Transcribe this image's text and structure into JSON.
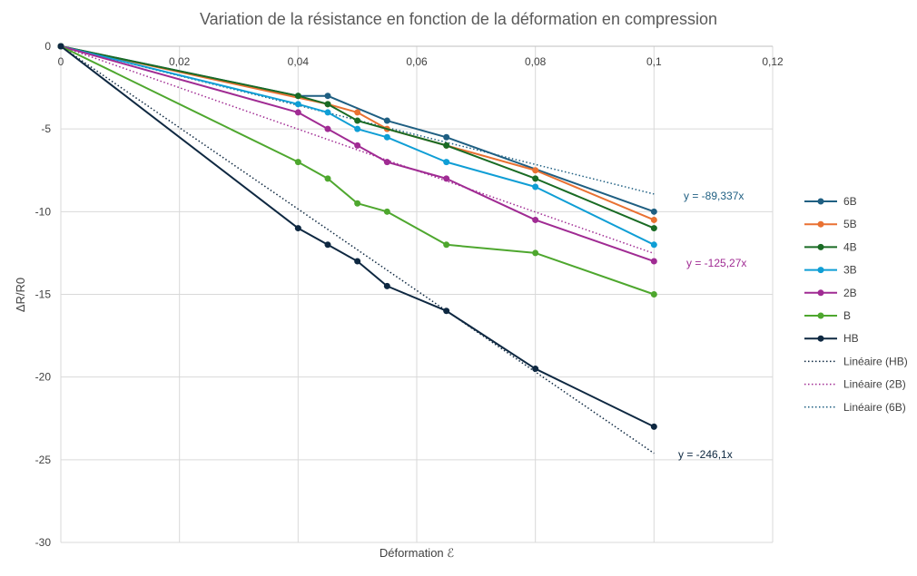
{
  "chart_data": {
    "type": "line",
    "title": "Variation de la résistance en fonction de la déformation en compression",
    "xlabel": "Déformation ℰ",
    "ylabel": "ΔR/R0",
    "xlim": [
      0,
      0.12
    ],
    "ylim": [
      -30,
      0
    ],
    "x_ticks": [
      0,
      0.02,
      0.04,
      0.06,
      0.08,
      0.1,
      0.12
    ],
    "x_tick_labels": [
      "0",
      "0,02",
      "0,04",
      "0,06",
      "0,08",
      "0,1",
      "0,12"
    ],
    "y_ticks": [
      0,
      -5,
      -10,
      -15,
      -20,
      -25,
      -30
    ],
    "y_tick_labels": [
      "0",
      "-5",
      "-10",
      "-15",
      "-20",
      "-25",
      "-30"
    ],
    "grid": true,
    "legend_position": "right",
    "series": [
      {
        "name": "6B",
        "color": "#1f5f82",
        "x": [
          0,
          0.04,
          0.045,
          0.055,
          0.065,
          0.1
        ],
        "y": [
          0,
          -3,
          -3,
          -4.5,
          -5.5,
          -10
        ]
      },
      {
        "name": "5B",
        "color": "#e97132",
        "x": [
          0,
          0.045,
          0.05,
          0.055,
          0.065,
          0.08,
          0.1
        ],
        "y": [
          0,
          -3.5,
          -4,
          -5,
          -6,
          -7.5,
          -10.5
        ]
      },
      {
        "name": "4B",
        "color": "#196b24",
        "x": [
          0,
          0.04,
          0.045,
          0.05,
          0.065,
          0.08,
          0.1
        ],
        "y": [
          0,
          -3,
          -3.5,
          -4.5,
          -6,
          -8,
          -11
        ]
      },
      {
        "name": "3B",
        "color": "#0f9ed5",
        "x": [
          0,
          0.04,
          0.045,
          0.05,
          0.055,
          0.065,
          0.08,
          0.1
        ],
        "y": [
          0,
          -3.5,
          -4,
          -5,
          -5.5,
          -7,
          -8.5,
          -12
        ]
      },
      {
        "name": "2B",
        "color": "#a02b93",
        "x": [
          0,
          0.04,
          0.045,
          0.05,
          0.055,
          0.065,
          0.08,
          0.1
        ],
        "y": [
          0,
          -4,
          -5,
          -6,
          -7,
          -8,
          -10.5,
          -13
        ]
      },
      {
        "name": "B",
        "color": "#4ea72e",
        "x": [
          0,
          0.04,
          0.045,
          0.05,
          0.055,
          0.065,
          0.08,
          0.1
        ],
        "y": [
          0,
          -7,
          -8,
          -9.5,
          -10,
          -12,
          -12.5,
          -15
        ]
      },
      {
        "name": "HB",
        "color": "#0e2841",
        "x": [
          0,
          0.04,
          0.045,
          0.05,
          0.055,
          0.065,
          0.08,
          0.1
        ],
        "y": [
          0,
          -11,
          -12,
          -13,
          -14.5,
          -16,
          -19.5,
          -23
        ]
      }
    ],
    "trendlines": [
      {
        "name": "Linéaire (HB)",
        "color": "#0e2841",
        "slope": -246.1,
        "x_range": [
          0,
          0.1
        ],
        "equation": "y = -246,1x"
      },
      {
        "name": "Linéaire (2B)",
        "color": "#a02b93",
        "slope": -125.27,
        "x_range": [
          0,
          0.1
        ],
        "equation": "y = -125,27x"
      },
      {
        "name": "Linéaire (6B)",
        "color": "#1f5f82",
        "slope": -89.337,
        "x_range": [
          0,
          0.1
        ],
        "equation": "y = -89,337x"
      }
    ]
  }
}
